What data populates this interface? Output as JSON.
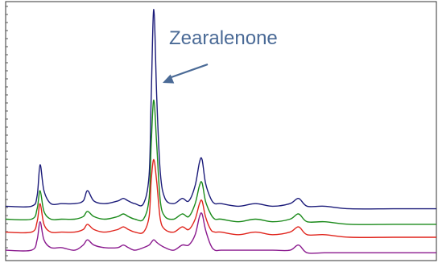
{
  "chart_data": {
    "type": "line",
    "title": "",
    "xlabel": "",
    "ylabel": "",
    "grid": false,
    "legend": "none",
    "axis_color": "#333333",
    "xlim": [
      0,
      100
    ],
    "ylim": [
      0,
      100
    ],
    "annotation": {
      "text": "Zearalenone",
      "color": "#4a6a96",
      "points_to_x": 34.2
    },
    "series": [
      {
        "color": "#1c1c7a",
        "x": [
          0,
          6,
          7.3,
          8,
          8.9,
          10.5,
          13,
          16,
          18,
          19,
          20.5,
          23,
          26,
          27.3,
          28.5,
          30,
          32,
          33.3,
          33.8,
          34.4,
          35.1,
          35.9,
          37,
          39,
          41,
          42.5,
          44,
          45,
          45.6,
          46.4,
          47.6,
          48.6,
          50,
          54,
          58,
          62,
          66,
          68,
          70,
          74,
          80,
          90,
          100
        ],
        "y": [
          21,
          21,
          25,
          37,
          27,
          22,
          22,
          22,
          23,
          27,
          23,
          22,
          23,
          24,
          23,
          22,
          22,
          33,
          63,
          97,
          62,
          34,
          24,
          22,
          24,
          23,
          29,
          38,
          39,
          30,
          24,
          22,
          22,
          21,
          22,
          21,
          22,
          24,
          21,
          21,
          20,
          20,
          20
        ]
      },
      {
        "color": "#1a8a1a",
        "x": [
          0,
          6,
          7.3,
          8,
          8.9,
          10.5,
          13,
          16,
          18,
          19,
          20.5,
          23,
          26,
          27.3,
          28.5,
          30,
          32,
          33.3,
          33.8,
          34.4,
          35.1,
          35.9,
          37,
          39,
          41,
          42.5,
          44,
          45,
          45.6,
          46.4,
          47.6,
          48.6,
          50,
          54,
          58,
          62,
          66,
          68,
          70,
          74,
          80,
          90,
          100
        ],
        "y": [
          16,
          16,
          20,
          27,
          19,
          16,
          16,
          16,
          17,
          19,
          17,
          16,
          17,
          18,
          17,
          16,
          16,
          24,
          45,
          62,
          44,
          23,
          17,
          16,
          18,
          17,
          22,
          29,
          30,
          23,
          18,
          16,
          16,
          15,
          16,
          15,
          16,
          18,
          15,
          15,
          14,
          14,
          14
        ]
      },
      {
        "color": "#e0241c",
        "x": [
          0,
          6,
          7.3,
          8,
          8.9,
          10.5,
          13,
          16,
          18,
          19,
          20.5,
          23,
          26,
          27.3,
          28.5,
          30,
          32,
          33.3,
          33.8,
          34.4,
          35.1,
          35.9,
          37,
          39,
          41,
          42.5,
          44,
          45,
          45.6,
          46.4,
          47.6,
          48.6,
          50,
          54,
          58,
          62,
          66,
          68,
          70,
          74,
          80,
          90,
          100
        ],
        "y": [
          11,
          11,
          15,
          22,
          14,
          11,
          11,
          11,
          12,
          14,
          12,
          11,
          12,
          13,
          12,
          11,
          11,
          17,
          31,
          39,
          30,
          16,
          12,
          11,
          13,
          12,
          16,
          22,
          23,
          17,
          12,
          11,
          11,
          10,
          11,
          10,
          11,
          13,
          10,
          10,
          9,
          9,
          9
        ]
      },
      {
        "color": "#8a1a8e",
        "x": [
          0,
          6,
          7.3,
          8,
          8.9,
          10.5,
          13,
          16,
          18,
          19,
          20.5,
          23,
          26,
          27.3,
          28.5,
          30,
          32,
          33.3,
          33.8,
          34.4,
          35.1,
          35.9,
          37,
          39,
          41,
          42.5,
          44,
          45,
          45.6,
          46.4,
          47.6,
          48.6,
          50,
          54,
          58,
          62,
          66,
          68,
          70,
          74,
          80,
          90,
          100
        ],
        "y": [
          4,
          4,
          8,
          15,
          8,
          5,
          5,
          4,
          6,
          8,
          6,
          5,
          5,
          6,
          5,
          4,
          5,
          6,
          7,
          8,
          7,
          6,
          5,
          4,
          6,
          6,
          10,
          17,
          18,
          12,
          6,
          4,
          4,
          4,
          4,
          4,
          4,
          6,
          3,
          3,
          3,
          3,
          3
        ]
      }
    ]
  }
}
